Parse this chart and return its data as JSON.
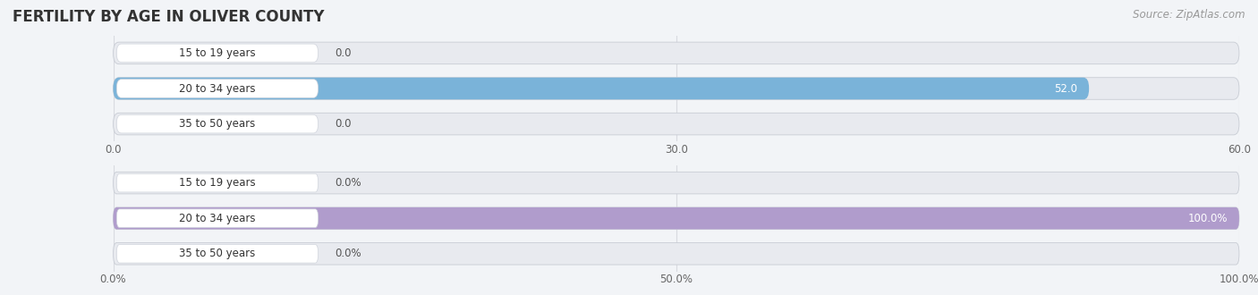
{
  "title": "FERTILITY BY AGE IN OLIVER COUNTY",
  "source": "Source: ZipAtlas.com",
  "top_chart": {
    "categories": [
      "15 to 19 years",
      "20 to 34 years",
      "35 to 50 years"
    ],
    "values": [
      0.0,
      52.0,
      0.0
    ],
    "xlim": [
      0,
      60
    ],
    "xticks": [
      0.0,
      30.0,
      60.0
    ],
    "xtick_labels": [
      "0.0",
      "30.0",
      "60.0"
    ],
    "bar_color": "#7ab3d9",
    "bar_color_light": "#b8d4ea"
  },
  "bottom_chart": {
    "categories": [
      "15 to 19 years",
      "20 to 34 years",
      "35 to 50 years"
    ],
    "values": [
      0.0,
      100.0,
      0.0
    ],
    "xlim": [
      0,
      100
    ],
    "xticks": [
      0.0,
      50.0,
      100.0
    ],
    "xtick_labels": [
      "0.0%",
      "50.0%",
      "100.0%"
    ],
    "bar_color": "#b09ccc",
    "bar_color_light": "#cfc0e0"
  },
  "background_color": "#f2f4f7",
  "bar_bg_color": "#e8eaef",
  "label_bg_color": "#ffffff",
  "label_border_color": "#d0d4dc",
  "grid_color": "#d8dae0",
  "bar_height": 0.62,
  "label_fontsize": 8.5,
  "value_fontsize": 8.5,
  "title_fontsize": 12,
  "source_fontsize": 8.5,
  "tick_fontsize": 8.5,
  "category_fontsize": 8.5,
  "fig_width": 14.06,
  "fig_height": 3.3
}
